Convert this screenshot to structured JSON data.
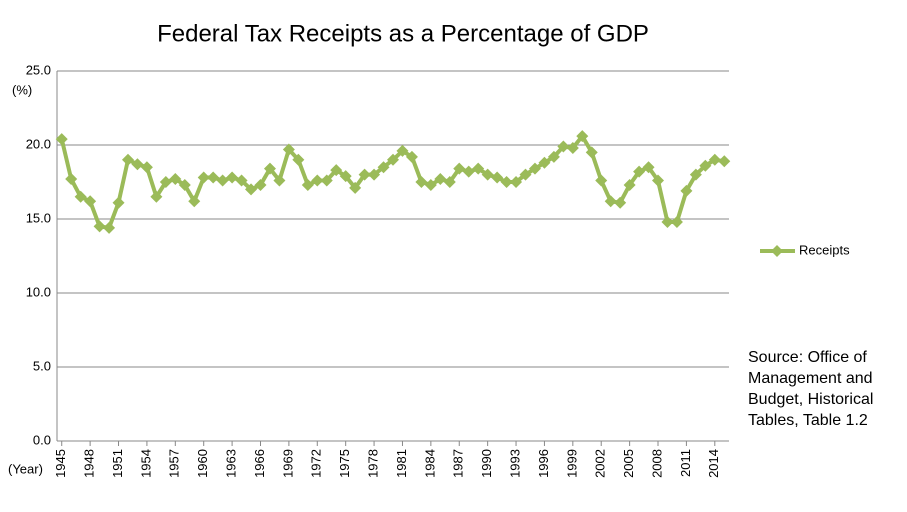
{
  "chart_data": {
    "type": "line",
    "title": "Federal Tax Receipts as a Percentage of GDP",
    "ylabel": "(%)",
    "xlabel": "(Year)",
    "source": "Source: Office of Management and Budget, Historical Tables, Table 1.2",
    "x": [
      1945,
      1946,
      1947,
      1948,
      1949,
      1950,
      1951,
      1952,
      1953,
      1954,
      1955,
      1956,
      1957,
      1958,
      1959,
      1960,
      1961,
      1962,
      1963,
      1964,
      1965,
      1966,
      1967,
      1968,
      1969,
      1970,
      1971,
      1972,
      1973,
      1974,
      1975,
      1976,
      1977,
      1978,
      1979,
      1980,
      1981,
      1982,
      1983,
      1984,
      1985,
      1986,
      1987,
      1988,
      1989,
      1990,
      1991,
      1992,
      1993,
      1994,
      1995,
      1996,
      1997,
      1998,
      1999,
      2000,
      2001,
      2002,
      2003,
      2004,
      2005,
      2006,
      2007,
      2008,
      2009,
      2010,
      2011,
      2012,
      2013,
      2014,
      2015
    ],
    "series": [
      {
        "name": "Receipts",
        "color": "#9bbb59",
        "values": [
          20.4,
          17.7,
          16.5,
          16.2,
          14.5,
          14.4,
          16.1,
          19.0,
          18.7,
          18.5,
          16.5,
          17.5,
          17.7,
          17.3,
          16.2,
          17.8,
          17.8,
          17.6,
          17.8,
          17.6,
          17.0,
          17.3,
          18.4,
          17.6,
          19.7,
          19.0,
          17.3,
          17.6,
          17.6,
          18.3,
          17.9,
          17.1,
          18.0,
          18.0,
          18.5,
          19.0,
          19.6,
          19.2,
          17.5,
          17.3,
          17.7,
          17.5,
          18.4,
          18.2,
          18.4,
          18.0,
          17.8,
          17.5,
          17.5,
          18.0,
          18.4,
          18.8,
          19.2,
          19.9,
          19.8,
          20.6,
          19.5,
          17.6,
          16.2,
          16.1,
          17.3,
          18.2,
          18.5,
          17.6,
          14.8,
          14.8,
          16.9,
          18.0,
          18.6,
          19.0,
          18.9
        ]
      }
    ],
    "xlim": [
      1944.5,
      2015.5
    ],
    "xticks": [
      1945,
      1948,
      1951,
      1954,
      1957,
      1960,
      1963,
      1966,
      1969,
      1972,
      1975,
      1978,
      1981,
      1984,
      1987,
      1990,
      1993,
      1996,
      1999,
      2002,
      2005,
      2008,
      2011,
      2014
    ],
    "ylim": [
      0,
      25
    ],
    "yticks": [
      {
        "value": 0,
        "label": "0.0"
      },
      {
        "value": 5,
        "label": "5.0"
      },
      {
        "value": 10,
        "label": "10.0"
      },
      {
        "value": 15,
        "label": "15.0"
      },
      {
        "value": 20,
        "label": "20.0"
      },
      {
        "value": 25,
        "label": "25.0"
      }
    ],
    "grid": true,
    "legend": "right"
  }
}
